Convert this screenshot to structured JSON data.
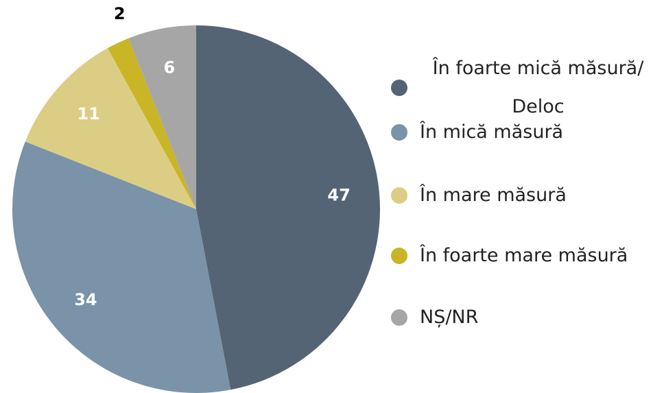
{
  "chart_data": {
    "type": "pie",
    "categories": [
      "În foarte mică măsură/ Deloc",
      "În mică măsură",
      "În mare măsură",
      "În foarte mare măsură",
      "NȘ/NR"
    ],
    "values": [
      47,
      34,
      11,
      2,
      6
    ],
    "colors": [
      "#546475",
      "#7a93a8",
      "#dccd85",
      "#c9b526",
      "#a6a6a6"
    ],
    "legend": "right"
  }
}
